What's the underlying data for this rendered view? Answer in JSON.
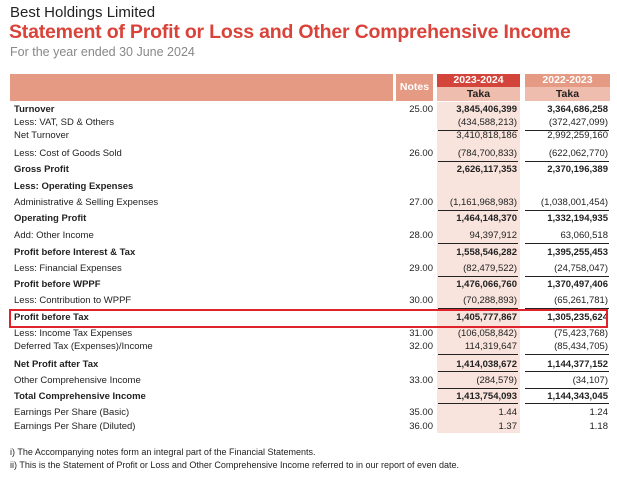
{
  "header": {
    "company": "Best Holdings Limited",
    "title": "Statement of Profit or Loss and Other Comprehensive Income",
    "subtitle": "For the year ended 30 June 2024"
  },
  "table": {
    "notes_label": "Notes",
    "current_year": "2023-2024",
    "prior_year": "2022-2023",
    "currency": "Taka",
    "rows": [
      {
        "label": "Turnover",
        "note": "25.00",
        "cy": "3,845,406,399",
        "py": "3,364,686,258",
        "bold": true
      },
      {
        "label": "Less: VAT, SD & Others",
        "note": "",
        "cy": "(434,588,213)",
        "py": "(372,427,099)"
      },
      {
        "label": "Net Turnover",
        "note": "",
        "cy": "3,410,818,186",
        "py": "2,992,259,160",
        "rule": true
      },
      {
        "label": "Less: Cost of Goods Sold",
        "note": "26.00",
        "cy": "(784,700,833)",
        "py": "(622,062,770)"
      },
      {
        "label": "Gross Profit",
        "note": "",
        "cy": "2,626,117,353",
        "py": "2,370,196,389",
        "bold": true,
        "rule": true
      },
      {
        "label": "Less: Operating Expenses",
        "note": "",
        "cy": "",
        "py": "",
        "bold": true
      },
      {
        "label": "Administrative & Selling Expenses",
        "note": "27.00",
        "cy": "(1,161,968,983)",
        "py": "(1,038,001,454)"
      },
      {
        "label": "Operating Profit",
        "note": "",
        "cy": "1,464,148,370",
        "py": "1,332,194,935",
        "bold": true,
        "rule": true
      },
      {
        "label": "Add: Other Income",
        "note": "28.00",
        "cy": "94,397,912",
        "py": "63,060,518"
      },
      {
        "label": "Profit before Interest & Tax",
        "note": "",
        "cy": "1,558,546,282",
        "py": "1,395,255,453",
        "bold": true,
        "rule": true
      },
      {
        "label": "Less: Financial Expenses",
        "note": "29.00",
        "cy": "(82,479,522)",
        "py": "(24,758,047)"
      },
      {
        "label": "Profit before WPPF",
        "note": "",
        "cy": "1,476,066,760",
        "py": "1,370,497,406",
        "bold": true,
        "rule": true
      },
      {
        "label": "Less: Contribution to WPPF",
        "note": "30.00",
        "cy": "(70,288,893)",
        "py": "(65,261,781)"
      },
      {
        "label": "Profit before Tax",
        "note": "",
        "cy": "1,405,777,867",
        "py": "1,305,235,624",
        "bold": true,
        "rule": true
      },
      {
        "label": "Less: Income Tax Expenses",
        "note": "31.00",
        "cy": "(106,058,842)",
        "py": "(75,423,768)"
      },
      {
        "label": "Deferred Tax (Expenses)/Income",
        "note": "32.00",
        "cy": "114,319,647",
        "py": "(85,434,705)"
      },
      {
        "label": "Net Profit after Tax",
        "note": "",
        "cy": "1,414,038,672",
        "py": "1,144,377,152",
        "bold": true,
        "rule": true,
        "underline": true
      },
      {
        "label": "Other Comprehensive Income",
        "note": "33.00",
        "cy": "(284,579)",
        "py": "(34,107)"
      },
      {
        "label": "Total Comprehensive Income",
        "note": "",
        "cy": "1,413,754,093",
        "py": "1,144,343,045",
        "bold": true,
        "rule": true,
        "underline": true
      },
      {
        "label": "Earnings Per Share (Basic)",
        "note": "35.00",
        "cy": "1.44",
        "py": "1.24"
      },
      {
        "label": "Earnings Per Share (Diluted)",
        "note": "36.00",
        "cy": "1.37",
        "py": "1.18"
      }
    ]
  },
  "footnotes": [
    "i) The Accompanying notes form an integral part of the Financial Statements.",
    "ii) This is the Statement of Profit or Loss and Other Comprehensive Income referred to in our report of even date."
  ],
  "colors": {
    "accent": "#d9433a",
    "header": "#e59a84",
    "highlight": "#e0232b"
  }
}
